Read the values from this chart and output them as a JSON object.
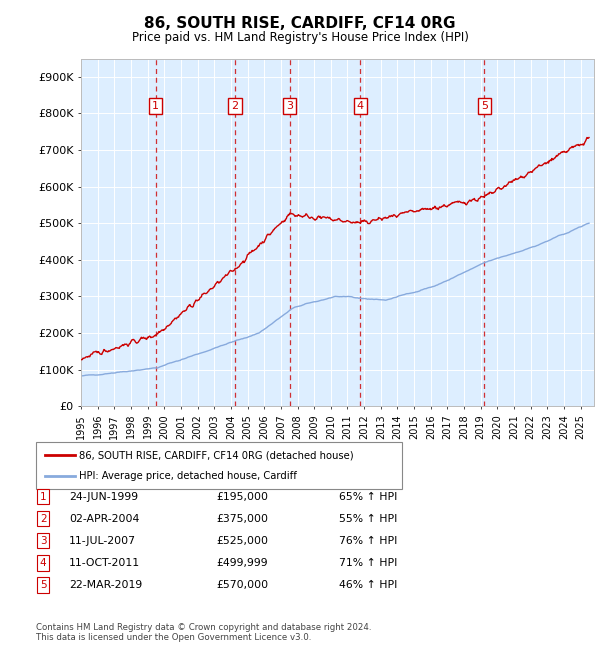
{
  "title": "86, SOUTH RISE, CARDIFF, CF14 0RG",
  "subtitle": "Price paid vs. HM Land Registry's House Price Index (HPI)",
  "title_fontsize": 11,
  "subtitle_fontsize": 9,
  "ylim": [
    0,
    950000
  ],
  "yticks": [
    0,
    100000,
    200000,
    300000,
    400000,
    500000,
    600000,
    700000,
    800000,
    900000
  ],
  "ytick_labels": [
    "£0",
    "£100K",
    "£200K",
    "£300K",
    "£400K",
    "£500K",
    "£600K",
    "£700K",
    "£800K",
    "£900K"
  ],
  "plot_bg_color": "#ddeeff",
  "grid_color": "#ffffff",
  "purchases": [
    {
      "num": 1,
      "price": 195000,
      "x_year": 1999.48
    },
    {
      "num": 2,
      "price": 375000,
      "x_year": 2004.25
    },
    {
      "num": 3,
      "price": 525000,
      "x_year": 2007.53
    },
    {
      "num": 4,
      "price": 499999,
      "x_year": 2011.78
    },
    {
      "num": 5,
      "price": 570000,
      "x_year": 2019.22
    }
  ],
  "hpi_color": "#88aadd",
  "price_color": "#cc0000",
  "vline_color": "#cc0000",
  "xmin": 1995.0,
  "xmax": 2025.8,
  "xtick_years": [
    1995,
    1996,
    1997,
    1998,
    1999,
    2000,
    2001,
    2002,
    2003,
    2004,
    2005,
    2006,
    2007,
    2008,
    2009,
    2010,
    2011,
    2012,
    2013,
    2014,
    2015,
    2016,
    2017,
    2018,
    2019,
    2020,
    2021,
    2022,
    2023,
    2024,
    2025
  ],
  "legend_label_price": "86, SOUTH RISE, CARDIFF, CF14 0RG (detached house)",
  "legend_label_hpi": "HPI: Average price, detached house, Cardiff",
  "footer": "Contains HM Land Registry data © Crown copyright and database right 2024.\nThis data is licensed under the Open Government Licence v3.0.",
  "table_rows": [
    {
      "num": "1",
      "date": "24-JUN-1999",
      "price": "£195,000",
      "pct": "65% ↑ HPI"
    },
    {
      "num": "2",
      "date": "02-APR-2004",
      "price": "£375,000",
      "pct": "55% ↑ HPI"
    },
    {
      "num": "3",
      "date": "11-JUL-2007",
      "price": "£525,000",
      "pct": "76% ↑ HPI"
    },
    {
      "num": "4",
      "date": "11-OCT-2011",
      "price": "£499,999",
      "pct": "71% ↑ HPI"
    },
    {
      "num": "5",
      "date": "22-MAR-2019",
      "price": "£570,000",
      "pct": "46% ↑ HPI"
    }
  ]
}
